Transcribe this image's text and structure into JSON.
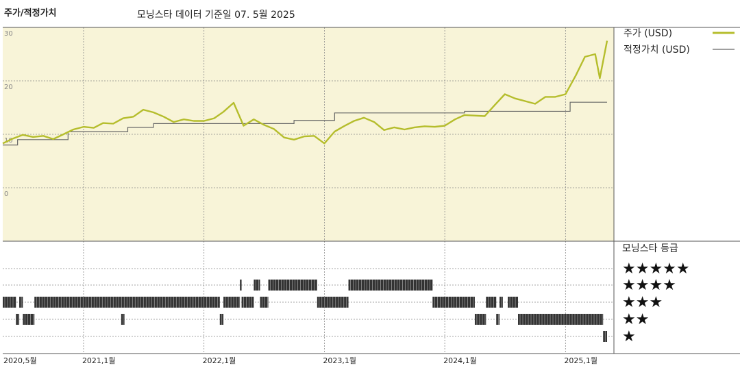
{
  "header": {
    "title": "주가/적정가치",
    "subtitle": "모닝스타 데이터 기준일 07. 5월 2025"
  },
  "legend": {
    "price_label": "주가 (USD)",
    "fair_value_label": "적정가치 (USD)",
    "rating_label": "모닝스타 등급"
  },
  "colors": {
    "price": "#b5bd2c",
    "fair_value": "#666666",
    "plot_bg": "#f8f4d8",
    "grid": "#888888",
    "rating_bar": "#333333"
  },
  "chart_data": [
    {
      "type": "line",
      "title": "주가/적정가치",
      "x_ticks": [
        "2020,5월",
        "2021,1월",
        "2022,1월",
        "2023,1월",
        "2024,1월",
        "2025,1월"
      ],
      "x_range": [
        "2020-05",
        "2025-05"
      ],
      "y_ticks": [
        "30",
        "20",
        "10",
        "0"
      ],
      "ylim": [
        -10,
        30
      ],
      "grid": true,
      "legend_position": "right",
      "series": [
        {
          "name": "주가 (USD)",
          "color": "#b5bd2c",
          "points": [
            [
              "2020-05-01",
              8.3
            ],
            [
              "2020-06-01",
              9.2
            ],
            [
              "2020-07-01",
              9.9
            ],
            [
              "2020-08-01",
              9.5
            ],
            [
              "2020-09-01",
              9.7
            ],
            [
              "2020-10-01",
              9.1
            ],
            [
              "2020-11-01",
              10.0
            ],
            [
              "2020-12-01",
              10.9
            ],
            [
              "2021-01-01",
              11.4
            ],
            [
              "2021-02-01",
              11.2
            ],
            [
              "2021-03-01",
              12.1
            ],
            [
              "2021-04-01",
              12.0
            ],
            [
              "2021-05-01",
              13.0
            ],
            [
              "2021-06-01",
              13.3
            ],
            [
              "2021-07-01",
              14.6
            ],
            [
              "2021-08-01",
              14.1
            ],
            [
              "2021-09-01",
              13.3
            ],
            [
              "2021-10-01",
              12.3
            ],
            [
              "2021-11-01",
              12.8
            ],
            [
              "2021-12-01",
              12.5
            ],
            [
              "2022-01-01",
              12.5
            ],
            [
              "2022-02-01",
              13.0
            ],
            [
              "2022-03-01",
              14.2
            ],
            [
              "2022-04-01",
              15.9
            ],
            [
              "2022-05-01",
              11.6
            ],
            [
              "2022-06-01",
              12.8
            ],
            [
              "2022-07-01",
              11.8
            ],
            [
              "2022-08-01",
              11.0
            ],
            [
              "2022-09-01",
              9.4
            ],
            [
              "2022-10-01",
              9.0
            ],
            [
              "2022-11-01",
              9.6
            ],
            [
              "2022-12-01",
              9.7
            ],
            [
              "2023-01-01",
              8.3
            ],
            [
              "2023-02-01",
              10.5
            ],
            [
              "2023-03-01",
              11.5
            ],
            [
              "2023-04-01",
              12.5
            ],
            [
              "2023-05-01",
              13.1
            ],
            [
              "2023-06-01",
              12.3
            ],
            [
              "2023-07-01",
              10.8
            ],
            [
              "2023-08-01",
              11.3
            ],
            [
              "2023-09-01",
              10.9
            ],
            [
              "2023-10-01",
              11.3
            ],
            [
              "2023-11-01",
              11.5
            ],
            [
              "2023-12-01",
              11.4
            ],
            [
              "2024-01-01",
              11.6
            ],
            [
              "2024-02-01",
              12.8
            ],
            [
              "2024-03-01",
              13.6
            ],
            [
              "2024-04-01",
              13.5
            ],
            [
              "2024-05-01",
              13.4
            ],
            [
              "2024-06-01",
              15.5
            ],
            [
              "2024-07-01",
              17.5
            ],
            [
              "2024-08-01",
              16.7
            ],
            [
              "2024-09-01",
              16.2
            ],
            [
              "2024-10-01",
              15.7
            ],
            [
              "2024-11-01",
              17.0
            ],
            [
              "2024-12-01",
              17.0
            ],
            [
              "2025-01-01",
              17.5
            ],
            [
              "2025-02-01",
              21.0
            ],
            [
              "2025-03-01",
              24.5
            ],
            [
              "2025-04-01",
              25.0
            ],
            [
              "2025-04-15",
              20.5
            ],
            [
              "2025-05-07",
              27.5
            ]
          ]
        },
        {
          "name": "적정가치 (USD)",
          "color": "#666666",
          "step": true,
          "points": [
            [
              "2020-05-01",
              8.0
            ],
            [
              "2020-06-15",
              9.0
            ],
            [
              "2020-11-15",
              10.5
            ],
            [
              "2021-05-15",
              11.3
            ],
            [
              "2021-08-01",
              12.0
            ],
            [
              "2022-07-15",
              12.0
            ],
            [
              "2022-10-01",
              12.6
            ],
            [
              "2023-02-01",
              14.0
            ],
            [
              "2023-12-15",
              14.0
            ],
            [
              "2024-03-01",
              14.3
            ],
            [
              "2025-01-15",
              16.0
            ],
            [
              "2025-05-07",
              16.0
            ]
          ]
        }
      ]
    },
    {
      "type": "timeline",
      "title": "모닝스타 등급",
      "rating_labels": [
        "★★★★★",
        "★★★★",
        "★★★",
        "★★",
        "★"
      ],
      "rating_rows": [
        5,
        4,
        3,
        2,
        1
      ],
      "segments": [
        {
          "stars": 3,
          "start": "2020-05-01",
          "end": "2020-06-10"
        },
        {
          "stars": 2,
          "start": "2020-06-10",
          "end": "2020-06-20"
        },
        {
          "stars": 3,
          "start": "2020-06-20",
          "end": "2020-07-01"
        },
        {
          "stars": 2,
          "start": "2020-07-01",
          "end": "2020-08-05"
        },
        {
          "stars": 3,
          "start": "2020-08-05",
          "end": "2021-12-01"
        },
        {
          "stars": 2,
          "start": "2021-04-25",
          "end": "2021-05-05"
        },
        {
          "stars": 3,
          "start": "2021-12-01",
          "end": "2022-02-18"
        },
        {
          "stars": 2,
          "start": "2022-02-18",
          "end": "2022-03-01"
        },
        {
          "stars": 3,
          "start": "2022-03-01",
          "end": "2022-04-20"
        },
        {
          "stars": 4,
          "start": "2022-04-20",
          "end": "2022-04-25"
        },
        {
          "stars": 3,
          "start": "2022-04-25",
          "end": "2022-06-01"
        },
        {
          "stars": 4,
          "start": "2022-06-01",
          "end": "2022-06-20"
        },
        {
          "stars": 3,
          "start": "2022-06-20",
          "end": "2022-07-15"
        },
        {
          "stars": 4,
          "start": "2022-07-15",
          "end": "2022-12-10"
        },
        {
          "stars": 3,
          "start": "2022-12-10",
          "end": "2023-03-15"
        },
        {
          "stars": 4,
          "start": "2023-03-15",
          "end": "2023-11-25"
        },
        {
          "stars": 3,
          "start": "2023-11-25",
          "end": "2024-04-01"
        },
        {
          "stars": 2,
          "start": "2024-04-01",
          "end": "2024-05-05"
        },
        {
          "stars": 3,
          "start": "2024-05-05",
          "end": "2024-06-05"
        },
        {
          "stars": 3,
          "start": "2024-06-15",
          "end": "2024-06-25"
        },
        {
          "stars": 2,
          "start": "2024-06-05",
          "end": "2024-06-15"
        },
        {
          "stars": 3,
          "start": "2024-07-10",
          "end": "2024-08-10"
        },
        {
          "stars": 2,
          "start": "2024-08-10",
          "end": "2025-04-25"
        },
        {
          "stars": 1,
          "start": "2025-04-25",
          "end": "2025-05-07"
        }
      ]
    }
  ]
}
